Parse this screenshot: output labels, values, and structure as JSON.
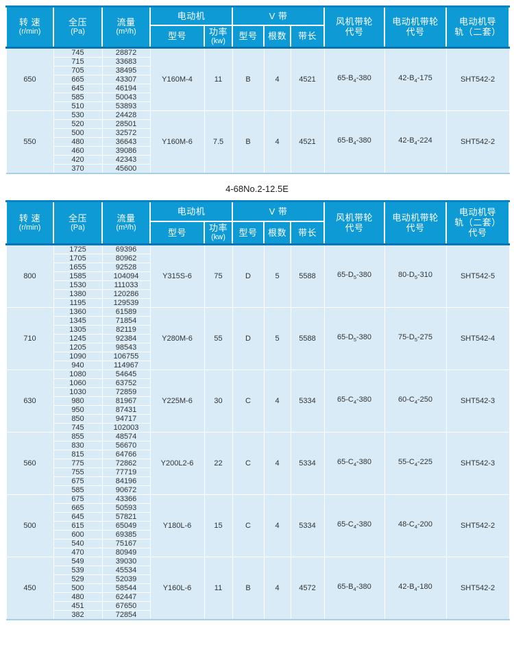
{
  "colors": {
    "header_bg": "#0e9ad5",
    "header_divider": "#0473b5",
    "body_bg": "#d8ebf6",
    "grid": "#ffffff",
    "header_text": "#ffffff",
    "body_text": "#333333"
  },
  "labels": {
    "speed1": "转 速",
    "speed2": "(r/min)",
    "pressure1": "全压",
    "pressure2": "(Pa)",
    "flow1": "流量",
    "flow2": "(m³/h)",
    "motor_group": "电动机",
    "model": "型号",
    "power1": "功率",
    "power2": "(kw)",
    "vbelt_group": "V 带",
    "belt_model": "型号",
    "belt_count": "根数",
    "belt_length": "带长",
    "fan_pulley1": "风机带轮",
    "fan_pulley2": "代号",
    "motor_pulley1": "电动机带轮",
    "motor_pulley2": "代号",
    "rail1": "电动机导",
    "rail2": "轨（二套）",
    "rail3": "代号"
  },
  "section_title": "4-68No.2-12.5E",
  "table1": {
    "groups": [
      {
        "speed": "650",
        "rows": [
          [
            "745",
            "28872"
          ],
          [
            "715",
            "33683"
          ],
          [
            "705",
            "38495"
          ],
          [
            "665",
            "43307"
          ],
          [
            "645",
            "46194"
          ],
          [
            "585",
            "50043"
          ],
          [
            "510",
            "53893"
          ]
        ],
        "motor_model": "Y160M-4",
        "power": "11",
        "belt_model": "B",
        "belt_count": "4",
        "belt_length": "4521",
        "fan_pulley": {
          "pre": "65-B",
          "sub": "4",
          "post": "-380"
        },
        "motor_pulley": {
          "pre": "42-B",
          "sub": "4",
          "post": "-175"
        },
        "rail": "SHT542-2"
      },
      {
        "speed": "550",
        "rows": [
          [
            "530",
            "24428"
          ],
          [
            "520",
            "28501"
          ],
          [
            "500",
            "32572"
          ],
          [
            "480",
            "36643"
          ],
          [
            "460",
            "39086"
          ],
          [
            "420",
            "42343"
          ],
          [
            "370",
            "45600"
          ]
        ],
        "motor_model": "Y160M-6",
        "power": "7.5",
        "belt_model": "B",
        "belt_count": "4",
        "belt_length": "4521",
        "fan_pulley": {
          "pre": "65-B",
          "sub": "4",
          "post": "-380"
        },
        "motor_pulley": {
          "pre": "42-B",
          "sub": "4",
          "post": "-224"
        },
        "rail": "SHT542-2"
      }
    ]
  },
  "table2": {
    "groups": [
      {
        "speed": "800",
        "rows": [
          [
            "1725",
            "69396"
          ],
          [
            "1705",
            "80962"
          ],
          [
            "1655",
            "92528"
          ],
          [
            "1585",
            "104094"
          ],
          [
            "1530",
            "111033"
          ],
          [
            "1380",
            "120286"
          ],
          [
            "1195",
            "129539"
          ]
        ],
        "motor_model": "Y315S-6",
        "power": "75",
        "belt_model": "D",
        "belt_count": "5",
        "belt_length": "5588",
        "fan_pulley": {
          "pre": "65-D",
          "sub": "5",
          "post": "-380"
        },
        "motor_pulley": {
          "pre": "80-D",
          "sub": "5",
          "post": "-310"
        },
        "rail": "SHT542-5"
      },
      {
        "speed": "710",
        "rows": [
          [
            "1360",
            "61589"
          ],
          [
            "1345",
            "71854"
          ],
          [
            "1305",
            "82119"
          ],
          [
            "1245",
            "92384"
          ],
          [
            "1205",
            "98543"
          ],
          [
            "1090",
            "106755"
          ],
          [
            "940",
            "114967"
          ]
        ],
        "motor_model": "Y280M-6",
        "power": "55",
        "belt_model": "D",
        "belt_count": "5",
        "belt_length": "5588",
        "fan_pulley": {
          "pre": "65-D",
          "sub": "5",
          "post": "-380"
        },
        "motor_pulley": {
          "pre": "75-D",
          "sub": "5",
          "post": "-275"
        },
        "rail": "SHT542-4"
      },
      {
        "speed": "630",
        "rows": [
          [
            "1080",
            "54645"
          ],
          [
            "1060",
            "63752"
          ],
          [
            "1030",
            "72859"
          ],
          [
            "980",
            "81967"
          ],
          [
            "950",
            "87431"
          ],
          [
            "850",
            "94717"
          ],
          [
            "745",
            "102003"
          ]
        ],
        "motor_model": "Y225M-6",
        "power": "30",
        "belt_model": "C",
        "belt_count": "4",
        "belt_length": "5334",
        "fan_pulley": {
          "pre": "65-C",
          "sub": "4",
          "post": "-380"
        },
        "motor_pulley": {
          "pre": "60-C",
          "sub": "4",
          "post": "-250"
        },
        "rail": "SHT542-3"
      },
      {
        "speed": "560",
        "rows": [
          [
            "855",
            "48574"
          ],
          [
            "830",
            "56670"
          ],
          [
            "815",
            "64766"
          ],
          [
            "775",
            "72862"
          ],
          [
            "755",
            "77719"
          ],
          [
            "675",
            "84196"
          ],
          [
            "585",
            "90672"
          ]
        ],
        "motor_model": "Y200L2-6",
        "power": "22",
        "belt_model": "C",
        "belt_count": "4",
        "belt_length": "5334",
        "fan_pulley": {
          "pre": "65-C",
          "sub": "4",
          "post": "-380"
        },
        "motor_pulley": {
          "pre": "55-C",
          "sub": "4",
          "post": "-225"
        },
        "rail": "SHT542-3"
      },
      {
        "speed": "500",
        "rows": [
          [
            "675",
            "43366"
          ],
          [
            "665",
            "50593"
          ],
          [
            "645",
            "57821"
          ],
          [
            "615",
            "65049"
          ],
          [
            "600",
            "69385"
          ],
          [
            "540",
            "75167"
          ],
          [
            "470",
            "80949"
          ]
        ],
        "motor_model": "Y180L-6",
        "power": "15",
        "belt_model": "C",
        "belt_count": "4",
        "belt_length": "5334",
        "fan_pulley": {
          "pre": "65-C",
          "sub": "4",
          "post": "-380"
        },
        "motor_pulley": {
          "pre": "48-C",
          "sub": "4",
          "post": "-200"
        },
        "rail": "SHT542-2"
      },
      {
        "speed": "450",
        "rows": [
          [
            "549",
            "39030"
          ],
          [
            "539",
            "45534"
          ],
          [
            "529",
            "52039"
          ],
          [
            "500",
            "58544"
          ],
          [
            "480",
            "62447"
          ],
          [
            "451",
            "67650"
          ],
          [
            "382",
            "72854"
          ]
        ],
        "motor_model": "Y160L-6",
        "power": "11",
        "belt_model": "B",
        "belt_count": "4",
        "belt_length": "4572",
        "fan_pulley": {
          "pre": "65-B",
          "sub": "4",
          "post": "-380"
        },
        "motor_pulley": {
          "pre": "42-B",
          "sub": "4",
          "post": "-180"
        },
        "rail": "SHT542-2"
      }
    ]
  }
}
